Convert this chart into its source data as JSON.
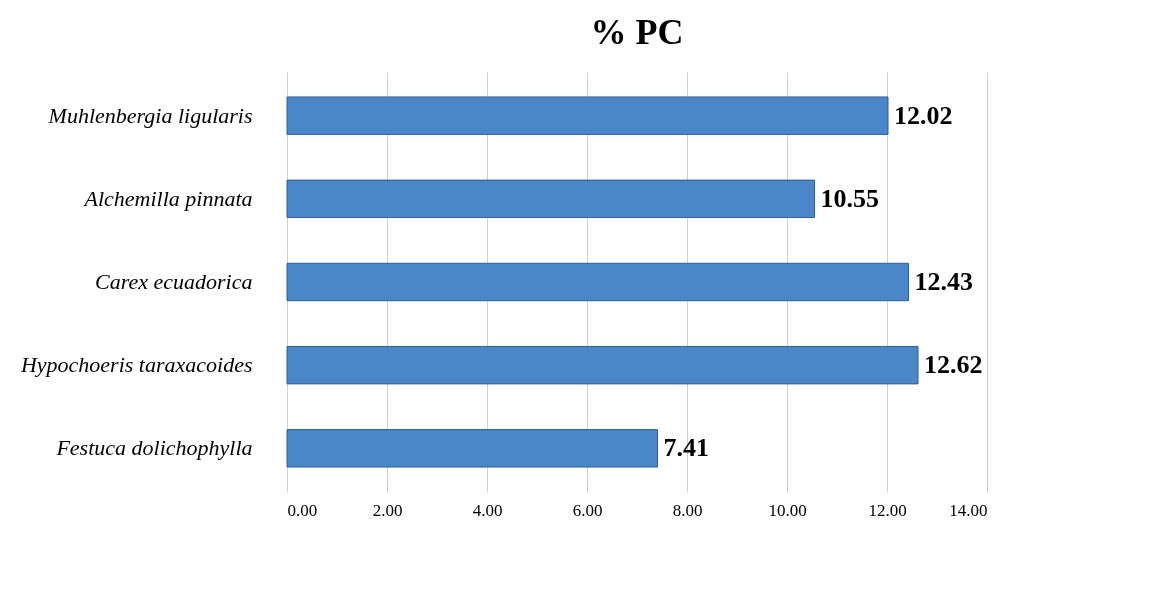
{
  "chart_data": {
    "type": "bar",
    "orientation": "horizontal",
    "title": "% PC",
    "categories": [
      "Muhlenbergia ligularis",
      "Alchemilla pinnata",
      "Carex ecuadorica",
      "Hypochoeris taraxacoides",
      "Festuca dolichophylla"
    ],
    "values": [
      12.02,
      10.55,
      12.43,
      12.62,
      7.41
    ],
    "color": "#4a86c8",
    "xlim": [
      0,
      14
    ],
    "xticks": [
      {
        "value": 0,
        "label": "0.00"
      },
      {
        "value": 2,
        "label": "2.00"
      },
      {
        "value": 4,
        "label": "4.00"
      },
      {
        "value": 6,
        "label": "6.00"
      },
      {
        "value": 8,
        "label": "8.00"
      },
      {
        "value": 10,
        "label": "10.00"
      },
      {
        "value": 12,
        "label": "12.00"
      },
      {
        "value": 14,
        "label": "14.00"
      }
    ],
    "grid": "x",
    "data_labels": true
  }
}
